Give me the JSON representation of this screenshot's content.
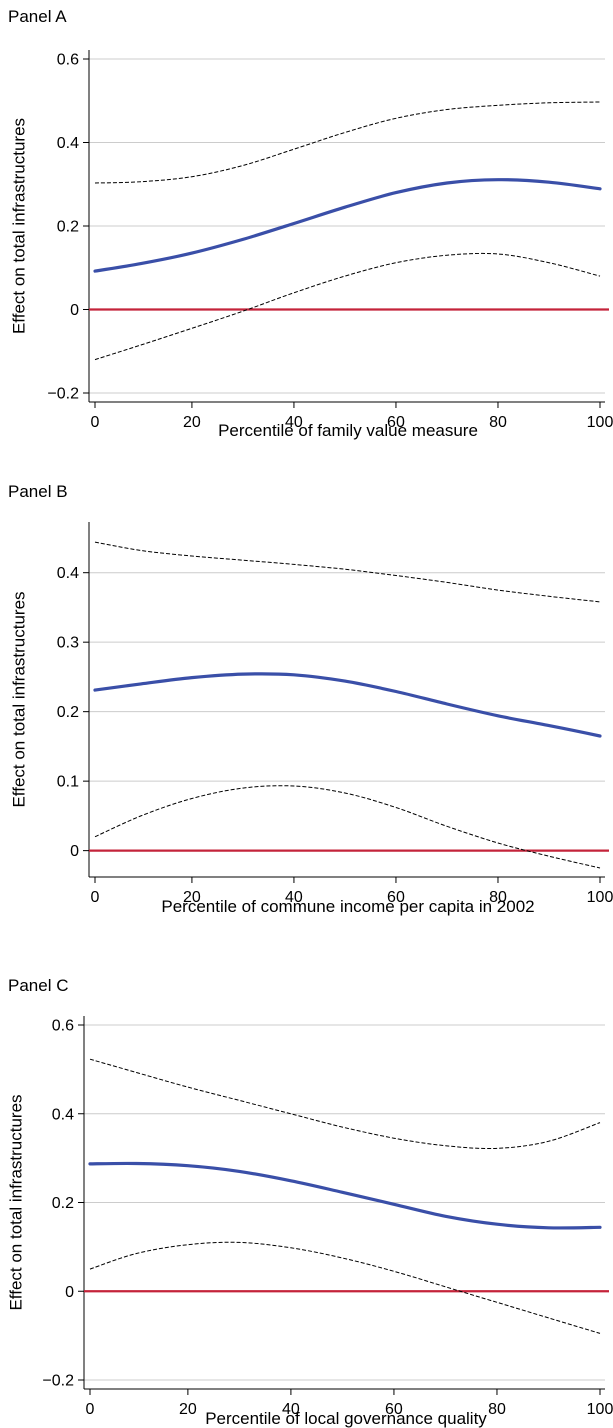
{
  "colors": {
    "estimate": "#3a4fa8",
    "confidence_band": "#000000",
    "zero_line": "#c4233a",
    "gridline": "#cccccc"
  },
  "chart_data": [
    {
      "type": "line",
      "panel_title": "Panel A",
      "xlabel": "Percentile of family value measure",
      "ylabel": "Effect on total infrastructures",
      "xlim": [
        1,
        100
      ],
      "ylim": [
        -0.2,
        0.6
      ],
      "xticks": [
        0,
        20,
        40,
        60,
        80,
        100
      ],
      "yticks": [
        -0.2,
        0,
        0.2,
        0.4,
        0.6
      ],
      "ytick_labels": [
        "−0.2",
        "0",
        "0.2",
        "0.4",
        "0.6"
      ],
      "zero_line": 0,
      "grid": true,
      "x": [
        1,
        10,
        20,
        30,
        40,
        50,
        60,
        70,
        80,
        90,
        100
      ],
      "series": [
        {
          "values": [
            0.092,
            0.11,
            0.135,
            0.168,
            0.206,
            0.245,
            0.28,
            0.303,
            0.311,
            0.305,
            0.289
          ]
        },
        {
          "values": [
            0.303,
            0.306,
            0.318,
            0.345,
            0.384,
            0.424,
            0.458,
            0.479,
            0.489,
            0.495,
            0.497
          ]
        },
        {
          "values": [
            -0.12,
            -0.085,
            -0.045,
            -0.004,
            0.04,
            0.08,
            0.112,
            0.13,
            0.133,
            0.112,
            0.08
          ]
        }
      ]
    },
    {
      "type": "line",
      "panel_title": "Panel B",
      "xlabel": "Percentile of commune income per capita in 2002",
      "ylabel": "Effect on total infrastructures",
      "xlim": [
        1,
        100
      ],
      "ylim": [
        -0.025,
        0.46
      ],
      "xticks": [
        0,
        20,
        40,
        60,
        80,
        100
      ],
      "yticks": [
        0,
        0.1,
        0.2,
        0.3,
        0.4
      ],
      "ytick_labels": [
        "0",
        "0.1",
        "0.2",
        "0.3",
        "0.4"
      ],
      "zero_line": 0,
      "grid": true,
      "x": [
        1,
        10,
        20,
        30,
        40,
        50,
        60,
        70,
        80,
        90,
        100
      ],
      "series": [
        {
          "values": [
            0.231,
            0.24,
            0.249,
            0.254,
            0.253,
            0.244,
            0.229,
            0.211,
            0.194,
            0.18,
            0.165
          ]
        },
        {
          "values": [
            0.444,
            0.432,
            0.424,
            0.418,
            0.412,
            0.405,
            0.396,
            0.386,
            0.375,
            0.366,
            0.358
          ]
        },
        {
          "values": [
            0.02,
            0.05,
            0.075,
            0.09,
            0.093,
            0.083,
            0.062,
            0.035,
            0.011,
            -0.008,
            -0.025
          ]
        }
      ]
    },
    {
      "type": "line",
      "panel_title": "Panel C",
      "xlabel": "Percentile of local governance quality",
      "ylabel": "Effect on total infrastructures",
      "xlim": [
        1,
        100
      ],
      "ylim": [
        -0.2,
        0.6
      ],
      "xticks": [
        0,
        20,
        40,
        60,
        80,
        100
      ],
      "yticks": [
        -0.2,
        0,
        0.2,
        0.4,
        0.6
      ],
      "ytick_labels": [
        "−0.2",
        "0",
        "0.2",
        "0.4",
        "0.6"
      ],
      "zero_line": 0,
      "grid": true,
      "x": [
        1,
        10,
        20,
        30,
        40,
        50,
        60,
        70,
        80,
        90,
        100
      ],
      "series": [
        {
          "values": [
            0.287,
            0.288,
            0.283,
            0.27,
            0.249,
            0.223,
            0.196,
            0.169,
            0.151,
            0.143,
            0.144
          ]
        },
        {
          "values": [
            0.523,
            0.493,
            0.46,
            0.43,
            0.4,
            0.37,
            0.345,
            0.328,
            0.322,
            0.338,
            0.38
          ]
        },
        {
          "values": [
            0.05,
            0.085,
            0.105,
            0.11,
            0.098,
            0.075,
            0.045,
            0.01,
            -0.025,
            -0.06,
            -0.095
          ]
        }
      ]
    }
  ]
}
